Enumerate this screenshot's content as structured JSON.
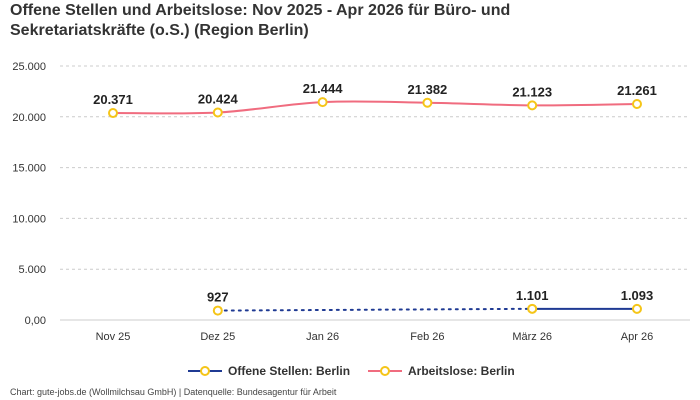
{
  "title_line1": "Offene Stellen und Arbeitslose: Nov 2025 - Apr 2026 für Büro- und",
  "title_line2": "Sekretariatskräfte (o.S.) (Region Berlin)",
  "footer": "Chart: gute-jobs.de (Wollmilchsau GmbH) | Datenquelle: Bundesagentur für Arbeit",
  "colors": {
    "offene": "#1f3a93",
    "arbeitslose": "#f06c7f",
    "marker_stroke": "#f5c518",
    "grid": "#cccccc",
    "axis_text": "#333333"
  },
  "chart_data": {
    "type": "line",
    "categories": [
      "Nov 25",
      "Dez 25",
      "Jan 26",
      "Feb 26",
      "März 26",
      "Apr 26"
    ],
    "ylim": [
      0,
      25000
    ],
    "yticks": [
      0,
      5000,
      10000,
      15000,
      20000,
      25000
    ],
    "ytick_labels": [
      "0,00",
      "5.000",
      "10.000",
      "15.000",
      "20.000",
      "25.000"
    ],
    "grid": true,
    "legend_position": "bottom",
    "series": [
      {
        "key": "offene",
        "name": "Offene Stellen: Berlin",
        "values": [
          null,
          927,
          null,
          null,
          1101,
          1093
        ],
        "labels": [
          "",
          "927",
          "",
          "",
          "1.101",
          "1.093"
        ]
      },
      {
        "key": "arbeitslose",
        "name": "Arbeitslose: Berlin",
        "values": [
          20371,
          20424,
          21444,
          21382,
          21123,
          21261
        ],
        "labels": [
          "20.371",
          "20.424",
          "21.444",
          "21.382",
          "21.123",
          "21.261"
        ]
      }
    ]
  }
}
